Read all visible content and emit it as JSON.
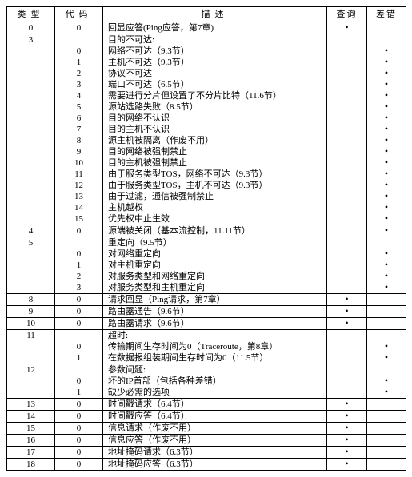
{
  "headers": {
    "type": "类型",
    "code": "代码",
    "desc": "描述",
    "query": "查询",
    "error": "差错"
  },
  "dot": "•",
  "rows": [
    {
      "sep": true,
      "type": "0",
      "code": "0",
      "desc": "回显应答(Ping应答，第7章)",
      "q": true,
      "e": false
    },
    {
      "sep": true,
      "type": "3",
      "code": "",
      "desc": "目的不可达:",
      "q": false,
      "e": false
    },
    {
      "sep": false,
      "type": "",
      "code": "0",
      "desc": "网络不可达（9.3节）",
      "q": false,
      "e": true
    },
    {
      "sep": false,
      "type": "",
      "code": "1",
      "desc": "主机不可达（9.3节）",
      "q": false,
      "e": true
    },
    {
      "sep": false,
      "type": "",
      "code": "2",
      "desc": "协议不可达",
      "q": false,
      "e": true
    },
    {
      "sep": false,
      "type": "",
      "code": "3",
      "desc": "端口不可达（6.5节）",
      "q": false,
      "e": true
    },
    {
      "sep": false,
      "type": "",
      "code": "4",
      "desc": "需要进行分片但设置了不分片比特（11.6节）",
      "q": false,
      "e": true
    },
    {
      "sep": false,
      "type": "",
      "code": "5",
      "desc": "源站选路失败（8.5节）",
      "q": false,
      "e": true
    },
    {
      "sep": false,
      "type": "",
      "code": "6",
      "desc": "目的网络不认识",
      "q": false,
      "e": true
    },
    {
      "sep": false,
      "type": "",
      "code": "7",
      "desc": "目的主机不认识",
      "q": false,
      "e": true
    },
    {
      "sep": false,
      "type": "",
      "code": "8",
      "desc": "源主机被隔离（作废不用）",
      "q": false,
      "e": true
    },
    {
      "sep": false,
      "type": "",
      "code": "9",
      "desc": "目的网络被强制禁止",
      "q": false,
      "e": true
    },
    {
      "sep": false,
      "type": "",
      "code": "10",
      "desc": "目的主机被强制禁止",
      "q": false,
      "e": true
    },
    {
      "sep": false,
      "type": "",
      "code": "11",
      "desc": "由于服务类型TOS，网络不可达（9.3节）",
      "q": false,
      "e": true
    },
    {
      "sep": false,
      "type": "",
      "code": "12",
      "desc": "由于服务类型TOS，主机不可达（9.3节）",
      "q": false,
      "e": true
    },
    {
      "sep": false,
      "type": "",
      "code": "13",
      "desc": "由于过滤，通信被强制禁止",
      "q": false,
      "e": true
    },
    {
      "sep": false,
      "type": "",
      "code": "14",
      "desc": "主机越权",
      "q": false,
      "e": true
    },
    {
      "sep": false,
      "type": "",
      "code": "15",
      "desc": "优先权中止生效",
      "q": false,
      "e": true
    },
    {
      "sep": true,
      "type": "4",
      "code": "0",
      "desc": "源端被关闭（基本流控制，11.11节）",
      "q": false,
      "e": true
    },
    {
      "sep": true,
      "type": "5",
      "code": "",
      "desc": "重定向（9.5节）",
      "q": false,
      "e": false
    },
    {
      "sep": false,
      "type": "",
      "code": "0",
      "desc": "对网络重定向",
      "q": false,
      "e": true
    },
    {
      "sep": false,
      "type": "",
      "code": "1",
      "desc": "对主机重定向",
      "q": false,
      "e": true
    },
    {
      "sep": false,
      "type": "",
      "code": "2",
      "desc": "对服务类型和网络重定向",
      "q": false,
      "e": true
    },
    {
      "sep": false,
      "type": "",
      "code": "3",
      "desc": "对服务类型和主机重定向",
      "q": false,
      "e": true
    },
    {
      "sep": true,
      "type": "8",
      "code": "0",
      "desc": "请求回显（Ping请求，第7章）",
      "q": true,
      "e": false
    },
    {
      "sep": true,
      "type": "9",
      "code": "0",
      "desc": "路由器通告（9.6节）",
      "q": true,
      "e": false
    },
    {
      "sep": true,
      "type": "10",
      "code": "0",
      "desc": "路由器请求（9.6节）",
      "q": true,
      "e": false
    },
    {
      "sep": true,
      "type": "11",
      "code": "",
      "desc": "超时:",
      "q": false,
      "e": false
    },
    {
      "sep": false,
      "type": "",
      "code": "0",
      "desc": "传输期间生存时间为0（Traceroute，第8章）",
      "q": false,
      "e": true
    },
    {
      "sep": false,
      "type": "",
      "code": "1",
      "desc": "在数据报组装期间生存时间为0（11.5节）",
      "q": false,
      "e": true
    },
    {
      "sep": true,
      "type": "12",
      "code": "",
      "desc": "参数问题:",
      "q": false,
      "e": false
    },
    {
      "sep": false,
      "type": "",
      "code": "0",
      "desc": "坏的IP首部（包括各种差错）",
      "q": false,
      "e": true
    },
    {
      "sep": false,
      "type": "",
      "code": "1",
      "desc": "缺少必需的选项",
      "q": false,
      "e": true
    },
    {
      "sep": true,
      "type": "13",
      "code": "0",
      "desc": "时间戳请求（6.4节）",
      "q": true,
      "e": false
    },
    {
      "sep": true,
      "type": "14",
      "code": "0",
      "desc": "时间戳应答（6.4节）",
      "q": true,
      "e": false
    },
    {
      "sep": true,
      "type": "15",
      "code": "0",
      "desc": "信息请求（作废不用）",
      "q": true,
      "e": false
    },
    {
      "sep": true,
      "type": "16",
      "code": "0",
      "desc": "信息应答（作废不用）",
      "q": true,
      "e": false
    },
    {
      "sep": true,
      "type": "17",
      "code": "0",
      "desc": "地址掩码请求（6.3节）",
      "q": true,
      "e": false
    },
    {
      "sep": true,
      "type": "18",
      "code": "0",
      "desc": "地址掩码应答（6.3节）",
      "q": true,
      "e": false
    }
  ]
}
